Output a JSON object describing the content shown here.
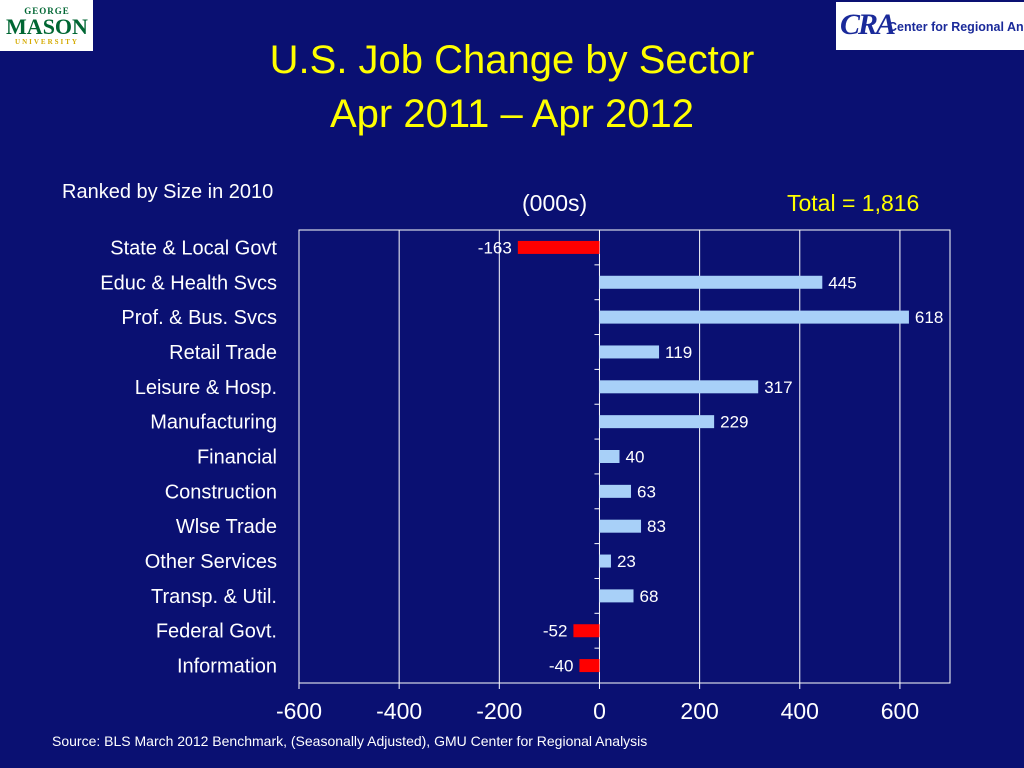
{
  "logos": {
    "left": {
      "george": "GEORGE",
      "mason": "MASON",
      "university": "UNIVERSITY"
    },
    "right": {
      "mark": "CRA",
      "text": "Center for Regional Analysis"
    }
  },
  "title_line1": "U.S. Job Change by Sector",
  "title_line2": "Apr 2011 – Apr 2012",
  "subtitle": "Ranked by Size in 2010",
  "units": "(000s)",
  "total": "Total = 1,816",
  "source": "Source: BLS March 2012 Benchmark, (Seasonally Adjusted), GMU Center for Regional Analysis",
  "colors": {
    "background": "#0a1072",
    "positive_bar": "#a8d0f8",
    "negative_bar": "#ff0000",
    "title": "#ffff00",
    "text": "#ffffff"
  },
  "chart_data": {
    "type": "bar",
    "orientation": "horizontal",
    "categories": [
      "State & Local Govt",
      "Educ & Health Svcs",
      "Prof. & Bus. Svcs",
      "Retail Trade",
      "Leisure & Hosp.",
      "Manufacturing",
      "Financial",
      "Construction",
      "Wlse Trade",
      "Other Services",
      "Transp. & Util.",
      "Federal Govt.",
      "Information"
    ],
    "values": [
      -163,
      445,
      618,
      119,
      317,
      229,
      40,
      63,
      83,
      23,
      68,
      -52,
      -40
    ],
    "xlim": [
      -600,
      700
    ],
    "xticks": [
      -600,
      -400,
      -200,
      0,
      200,
      400,
      600
    ],
    "grid": "vertical",
    "legend": "none"
  }
}
